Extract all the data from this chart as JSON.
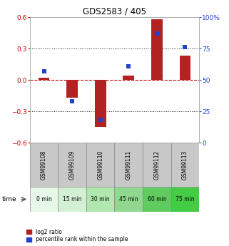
{
  "title": "GDS2583 / 405",
  "samples": [
    "GSM99108",
    "GSM99109",
    "GSM99110",
    "GSM99111",
    "GSM99112",
    "GSM99113"
  ],
  "time_labels": [
    "0 min",
    "15 min",
    "30 min",
    "45 min",
    "60 min",
    "75 min"
  ],
  "log2_ratio": [
    0.02,
    -0.17,
    -0.45,
    0.04,
    0.58,
    0.23
  ],
  "percentile": [
    57,
    33,
    18,
    61,
    87,
    76
  ],
  "bar_color": "#b22222",
  "square_color": "#2244cc",
  "ylim": [
    -0.6,
    0.6
  ],
  "y2lim": [
    0,
    100
  ],
  "yticks": [
    -0.6,
    -0.3,
    0.0,
    0.3,
    0.6
  ],
  "y2ticks": [
    0,
    25,
    50,
    75,
    100
  ],
  "y2tick_labels": [
    "0",
    "25",
    "50",
    "75",
    "100%"
  ],
  "ytick_color": "#cc0000",
  "y2tick_color": "#2244cc",
  "hline_color": "#cc0000",
  "grid_color": "#222222",
  "bar_width": 0.4,
  "square_size": 25,
  "time_colors": [
    "#e8f8e8",
    "#d4f0d4",
    "#b0e8b0",
    "#90d890",
    "#60cc60",
    "#44cc44"
  ],
  "gsm_bg_color": "#c8c8c8",
  "legend_red_label": "log2 ratio",
  "legend_blue_label": "percentile rank within the sample"
}
